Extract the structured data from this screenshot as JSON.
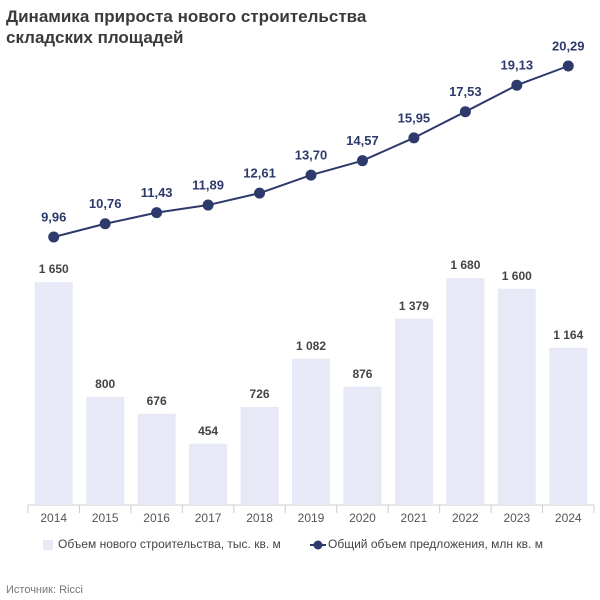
{
  "chart_data": {
    "type": "combo",
    "title": "Динамика прироста нового строительства складских площадей",
    "source": "Источник: Ricci",
    "categories": [
      "2014",
      "2015",
      "2016",
      "2017",
      "2018",
      "2019",
      "2020",
      "2021",
      "2022",
      "2023",
      "2024"
    ],
    "series": [
      {
        "name": "Объем нового строительства, тыс. кв. м",
        "type": "bar",
        "color": "#e8e9f6",
        "values": [
          1650,
          800,
          676,
          454,
          726,
          1082,
          876,
          1379,
          1680,
          1600,
          1164
        ],
        "value_labels": [
          "1 650",
          "800",
          "676",
          "454",
          "726",
          "1 082",
          "876",
          "1 379",
          "1 680",
          "1 600",
          "1 164"
        ]
      },
      {
        "name": "Общий объем предложения, млн кв. м",
        "type": "line",
        "color": "#2e3a6c",
        "values": [
          9.96,
          10.76,
          11.43,
          11.89,
          12.61,
          13.7,
          14.57,
          15.95,
          17.53,
          19.13,
          20.29
        ],
        "value_labels": [
          "9,96",
          "10,76",
          "11,43",
          "11,89",
          "12,61",
          "13,70",
          "14,57",
          "15,95",
          "17,53",
          "19,13",
          "20,29"
        ]
      }
    ]
  }
}
